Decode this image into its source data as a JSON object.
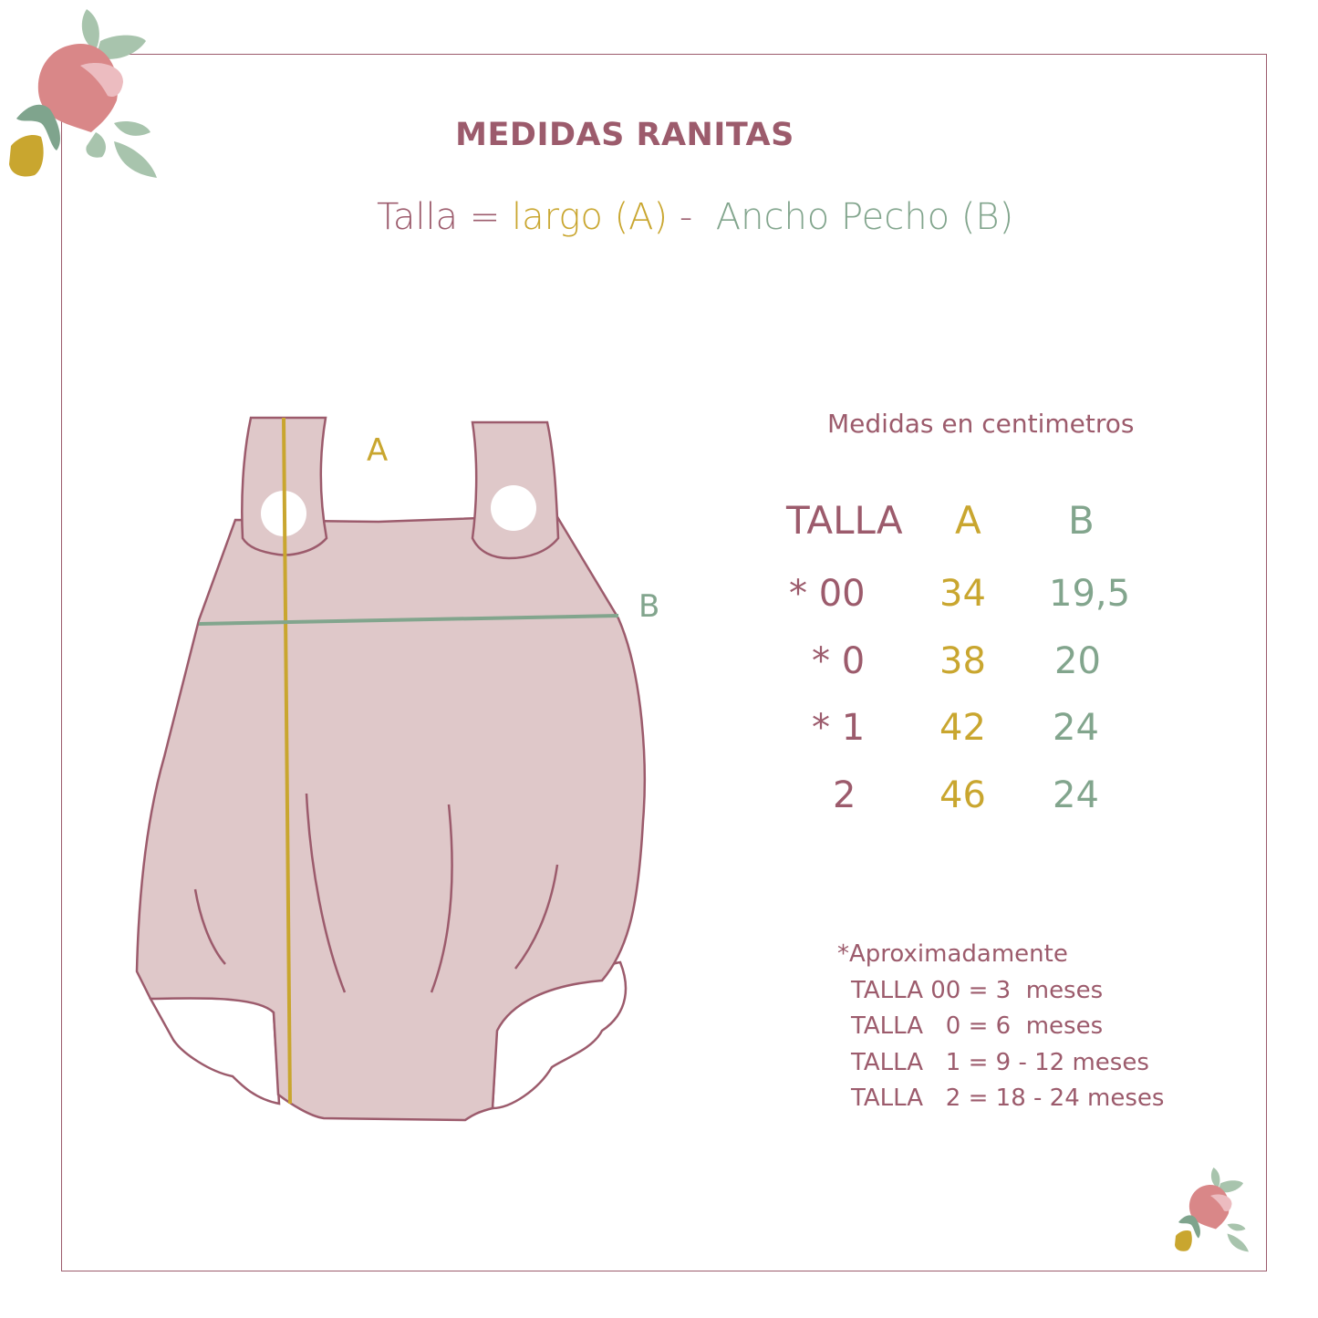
{
  "title": "MEDIDAS RANITAS",
  "formula": {
    "talla": "Talla = ",
    "largo": "largo (A)",
    "sep": " -  ",
    "ancho": "Ancho Pecho (B)"
  },
  "diagram": {
    "label_a": "A",
    "label_b": "B"
  },
  "units": "Medidas en centimetros",
  "table": {
    "headers": [
      "TALLA",
      "A",
      "B"
    ],
    "rows": [
      {
        "talla": "* 00",
        "a": "34",
        "b": "19,5"
      },
      {
        "talla": "* 0",
        "a": "38",
        "b": "20"
      },
      {
        "talla": "* 1",
        "a": "42",
        "b": "24"
      },
      {
        "talla": "2",
        "a": "46",
        "b": "24"
      }
    ]
  },
  "notes": {
    "heading": "*Aproximadamente",
    "lines": [
      "TALLA 00 = 3  meses",
      "TALLA   0 = 6  meses",
      "TALLA   1 = 9 - 12 meses",
      "TALLA   2 = 18 - 24 meses"
    ]
  },
  "colors": {
    "mauve": "#9c5b6c",
    "gold": "#c9a62f",
    "green": "#82a58d",
    "garment": "#dfc8c9"
  }
}
